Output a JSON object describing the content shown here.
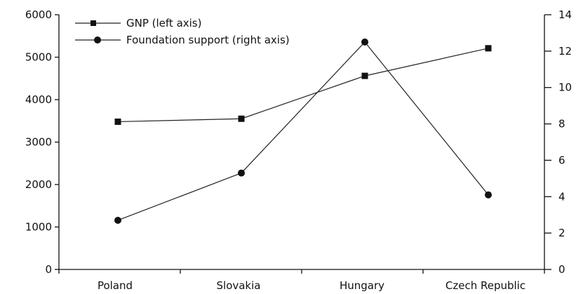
{
  "chart_data": {
    "type": "line",
    "categories": [
      "Poland",
      "Slovakia",
      "Hungary",
      "Czech Republic"
    ],
    "series": [
      {
        "name": "GNP (left axis)",
        "axis": "left",
        "marker": "square",
        "values": [
          3480,
          3550,
          4560,
          5210
        ]
      },
      {
        "name": "Foundation support (right axis)",
        "axis": "right",
        "marker": "circle",
        "values": [
          2.7,
          5.3,
          12.5,
          4.1
        ]
      }
    ],
    "y_left": {
      "min": 0,
      "max": 6000,
      "ticks": [
        0,
        1000,
        2000,
        3000,
        4000,
        5000,
        6000
      ]
    },
    "y_right": {
      "min": 0,
      "max": 14,
      "ticks": [
        0,
        2,
        4,
        6,
        8,
        10,
        12,
        14
      ]
    },
    "legend": "top-left",
    "grid": false,
    "colors": {
      "line": "#222222",
      "text": "#111111"
    }
  }
}
